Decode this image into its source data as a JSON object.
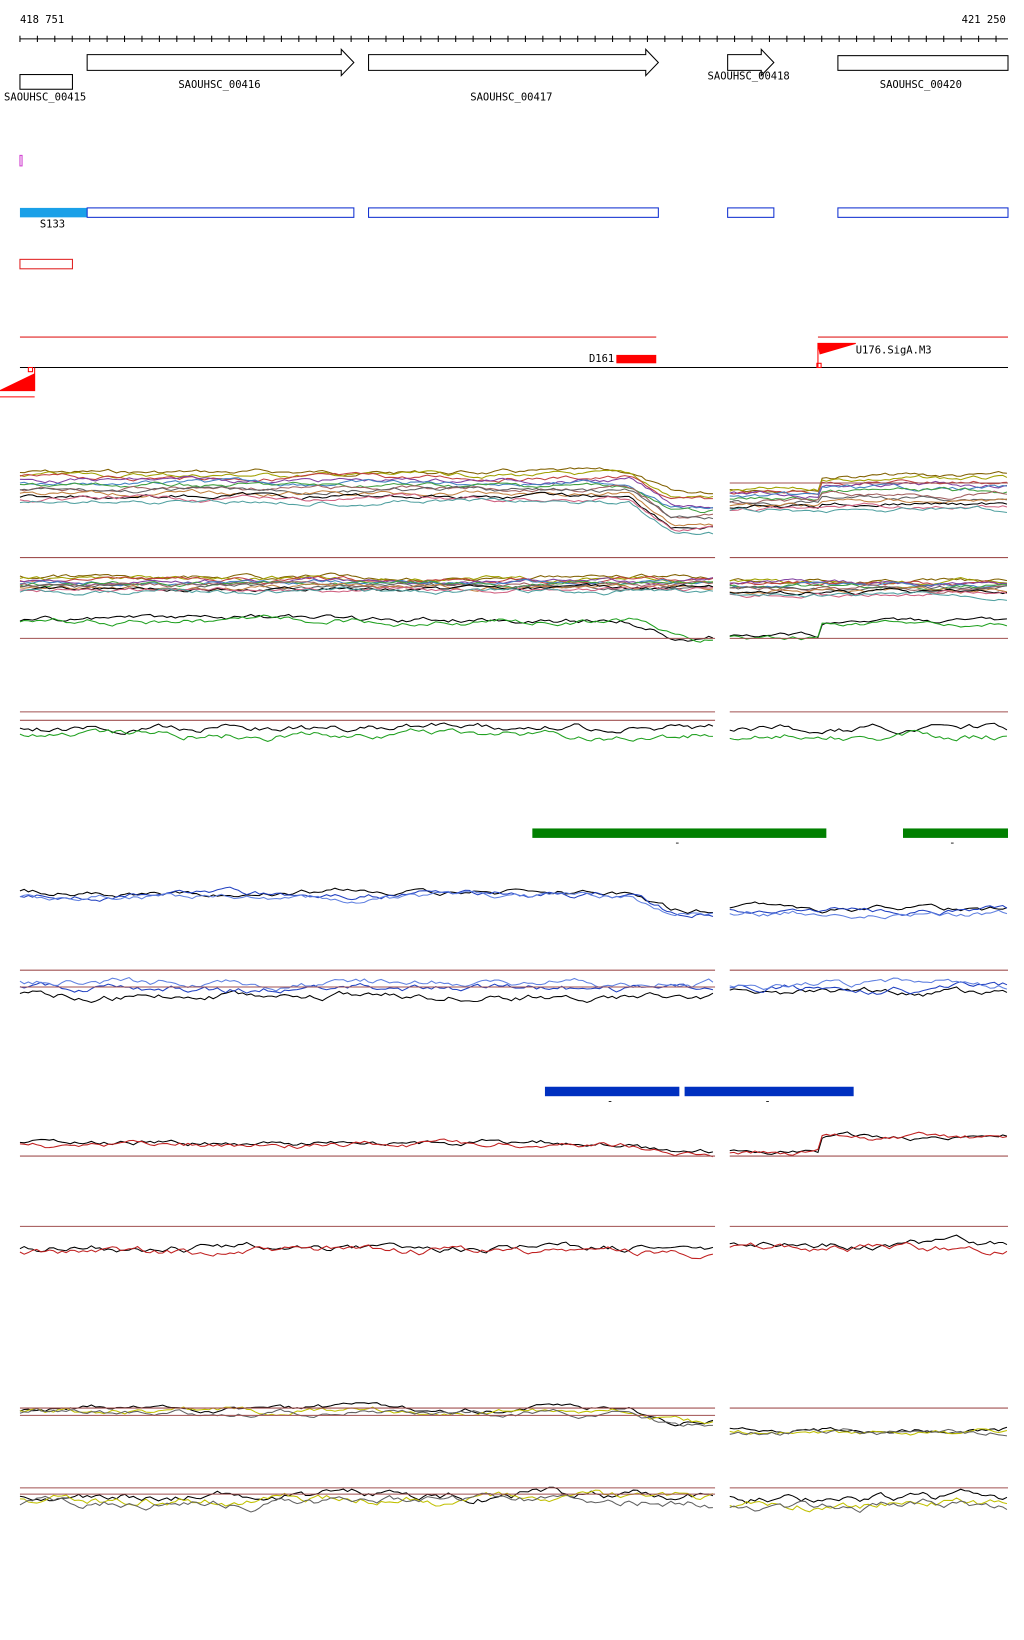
{
  "ruler": {
    "start": "418 751",
    "end": "421 250"
  },
  "genes": [
    "SAOUHSC_00415",
    "SAOUHSC_00416",
    "SAOUHSC_00417",
    "SAOUHSC_00418",
    "SAOUHSC_00420"
  ],
  "features": {
    "transcript": "S133",
    "down": "D161",
    "up": "U176.SigA.M3"
  },
  "bar_labels": [
    "-",
    "-",
    "-",
    "-"
  ]
}
